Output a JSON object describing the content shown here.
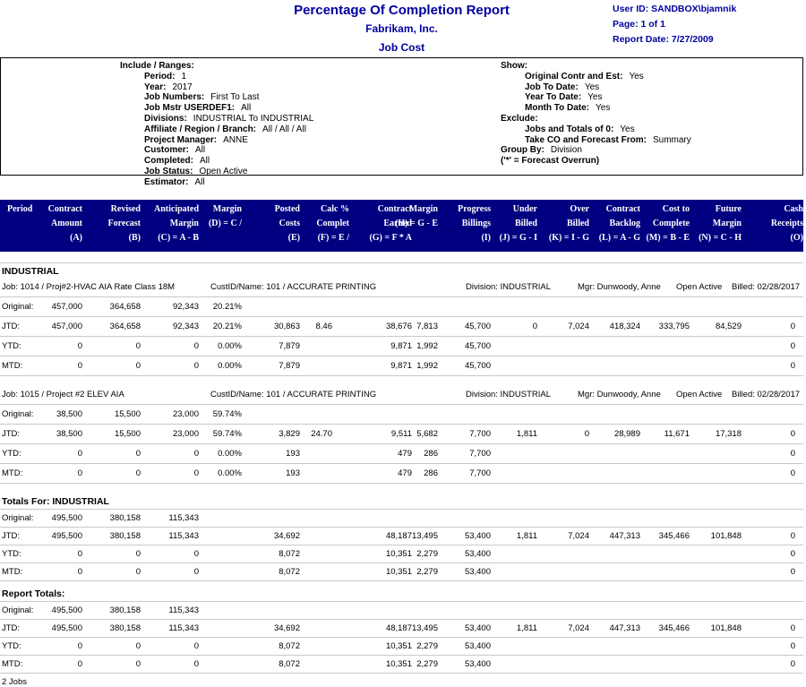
{
  "colors": {
    "header_band": "#000080",
    "header_band_text": "#FFFFFF",
    "title_text": "#0000A0",
    "grid_line": "#C9C9C9",
    "body_text": "#000000"
  },
  "page": {
    "title": "Percentage Of Completion Report",
    "company": "Fabrikam, Inc.",
    "module": "Job Cost",
    "user_id": "User ID: SANDBOX\\bjamnik",
    "page_info": "Page: 1 of 1",
    "report_date": "Report Date: 7/27/2009"
  },
  "options": {
    "include": {
      "items": [
        {
          "label": "Include / Ranges:",
          "indent": 0
        },
        {
          "label": "Period:",
          "value": "1",
          "indent": 1
        },
        {
          "label": "Year:",
          "value": "2017",
          "indent": 1
        },
        {
          "label": "Job Numbers:",
          "value": "First To Last",
          "indent": 1
        },
        {
          "label": "Job Mstr USERDEF1:",
          "value": "All",
          "indent": 1
        },
        {
          "label": "Divisions:",
          "value": "INDUSTRIAL To INDUSTRIAL",
          "indent": 1
        },
        {
          "label": "Affiliate / Region / Branch:",
          "value": "All / All / All",
          "indent": 1
        },
        {
          "label": "Project Manager:",
          "value": "ANNE",
          "indent": 1
        },
        {
          "label": "Customer:",
          "value": "All",
          "indent": 1
        },
        {
          "label": "Completed:",
          "value": "All",
          "indent": 1
        },
        {
          "label": "Job Status:",
          "value": "Open Active",
          "indent": 1
        },
        {
          "label": "Estimator:",
          "value": "All",
          "indent": 1
        }
      ]
    },
    "show": {
      "items": [
        {
          "label": "Show:",
          "indent": 0
        },
        {
          "label": "Original Contr and Est:",
          "value": "Yes",
          "indent": 1
        },
        {
          "label": "Job To Date:",
          "value": "Yes",
          "indent": 1
        },
        {
          "label": "Year To Date:",
          "value": "Yes",
          "indent": 1
        },
        {
          "label": "Month To Date:",
          "value": "Yes",
          "indent": 1
        },
        {
          "label": "Exclude:",
          "indent": 0
        },
        {
          "label": "Jobs and Totals of 0:",
          "value": "Yes",
          "indent": 1
        },
        {
          "label": "Take CO and Forecast From:",
          "value": "Summary",
          "indent": 1
        },
        {
          "label": "Group By:",
          "value": "Division",
          "indent": 0
        },
        {
          "label": "('*' = Forecast Overrun)",
          "indent": 0
        }
      ]
    }
  },
  "table": {
    "period_header": "Period",
    "columns": [
      {
        "lines": [
          "Contract",
          "Amount",
          "(A)"
        ]
      },
      {
        "lines": [
          "Revised",
          "Forecast",
          "(B)"
        ]
      },
      {
        "lines": [
          "Anticipated",
          "Margin",
          "(C) = A - B"
        ]
      },
      {
        "lines": [
          "Margin",
          "(D) = C /",
          ""
        ]
      },
      {
        "lines": [
          "Posted",
          "Costs",
          "(E)"
        ]
      },
      {
        "lines": [
          "Calc %",
          "Complet",
          "(F) = E /"
        ]
      },
      {
        "lines": [
          "Contract",
          "Earned",
          "(G) = F * A"
        ]
      },
      {
        "lines": [
          "Margin",
          "(H) = G - E",
          ""
        ]
      },
      {
        "lines": [
          "Progress",
          "Billings",
          "(I)"
        ]
      },
      {
        "lines": [
          "Under",
          "Billed",
          "(J) = G - I"
        ]
      },
      {
        "lines": [
          "Over",
          "Billed",
          "(K) = I - G"
        ]
      },
      {
        "lines": [
          "Contract",
          "Backlog",
          "(L) = A - G"
        ]
      },
      {
        "lines": [
          "Cost to",
          "Complete",
          "(M) = B - E"
        ]
      },
      {
        "lines": [
          "Future",
          "Margin",
          "(N) = C - H"
        ]
      },
      {
        "lines": [
          "Cash",
          "Receipts",
          "(O)"
        ]
      }
    ]
  },
  "report": {
    "sections": [
      {
        "type": "division",
        "text": "INDUSTRIAL"
      },
      {
        "type": "job",
        "info": [
          "Job: 1014 / Proj#2-HVAC AIA Rate Class 18M",
          "CustID/Name: 101 / ACCURATE PRINTING",
          "Division: INDUSTRIAL",
          "Mgr: Dunwoody, Anne",
          "Open Active",
          "Billed: 02/28/2017"
        ],
        "rows": [
          {
            "label": "Original:",
            "cells": [
              "457,000",
              "364,658",
              "92,343",
              "20.21%",
              "",
              "",
              "",
              "",
              "",
              "",
              "",
              "",
              "",
              "",
              ""
            ]
          },
          {
            "label": "JTD:",
            "cells": [
              "457,000",
              "364,658",
              "92,343",
              "20.21%",
              "30,863",
              "8.46",
              "38,676",
              "7,813",
              "45,700",
              "0",
              "7,024",
              "418,324",
              "333,795",
              "84,529",
              "0"
            ]
          },
          {
            "label": "YTD:",
            "cells": [
              "0",
              "0",
              "0",
              "0.00%",
              "7,879",
              "",
              "9,871",
              "1,992",
              "45,700",
              "",
              "",
              "",
              "",
              "",
              "0"
            ]
          },
          {
            "label": "MTD:",
            "cells": [
              "0",
              "0",
              "0",
              "0.00%",
              "7,879",
              "",
              "9,871",
              "1,992",
              "45,700",
              "",
              "",
              "",
              "",
              "",
              "0"
            ]
          }
        ]
      },
      {
        "type": "job",
        "info": [
          "Job: 1015 / Project #2 ELEV AIA",
          "CustID/Name: 101 / ACCURATE PRINTING",
          "Division: INDUSTRIAL",
          "Mgr: Dunwoody, Anne",
          "Open Active",
          "Billed: 02/28/2017"
        ],
        "rows": [
          {
            "label": "Original:",
            "cells": [
              "38,500",
              "15,500",
              "23,000",
              "59.74%",
              "",
              "",
              "",
              "",
              "",
              "",
              "",
              "",
              "",
              "",
              ""
            ]
          },
          {
            "label": "JTD:",
            "cells": [
              "38,500",
              "15,500",
              "23,000",
              "59.74%",
              "3,829",
              "24.70",
              "9,511",
              "5,682",
              "7,700",
              "1,811",
              "0",
              "28,989",
              "11,671",
              "17,318",
              "0"
            ]
          },
          {
            "label": "YTD:",
            "cells": [
              "0",
              "0",
              "0",
              "0.00%",
              "193",
              "",
              "479",
              "286",
              "7,700",
              "",
              "",
              "",
              "",
              "",
              "0"
            ]
          },
          {
            "label": "MTD:",
            "cells": [
              "0",
              "0",
              "0",
              "0.00%",
              "193",
              "",
              "479",
              "286",
              "7,700",
              "",
              "",
              "",
              "",
              "",
              "0"
            ]
          }
        ]
      },
      {
        "type": "totals",
        "heading": "Totals For: INDUSTRIAL",
        "rows": [
          {
            "label": "Original:",
            "cells": [
              "495,500",
              "380,158",
              "115,343",
              "",
              "",
              "",
              "",
              "",
              "",
              "",
              "",
              "",
              "",
              "",
              ""
            ]
          },
          {
            "label": "JTD:",
            "cells": [
              "495,500",
              "380,158",
              "115,343",
              "",
              "34,692",
              "",
              "48,187",
              "13,495",
              "53,400",
              "1,811",
              "7,024",
              "447,313",
              "345,466",
              "101,848",
              "0"
            ]
          },
          {
            "label": "YTD:",
            "cells": [
              "0",
              "0",
              "0",
              "",
              "8,072",
              "",
              "10,351",
              "2,279",
              "53,400",
              "",
              "",
              "",
              "",
              "",
              "0"
            ]
          },
          {
            "label": "MTD:",
            "cells": [
              "0",
              "0",
              "0",
              "",
              "8,072",
              "",
              "10,351",
              "2,279",
              "53,400",
              "",
              "",
              "",
              "",
              "",
              "0"
            ]
          }
        ]
      },
      {
        "type": "totals",
        "heading": "Report Totals:",
        "rows": [
          {
            "label": "Original:",
            "cells": [
              "495,500",
              "380,158",
              "115,343",
              "",
              "",
              "",
              "",
              "",
              "",
              "",
              "",
              "",
              "",
              "",
              ""
            ]
          },
          {
            "label": "JTD:",
            "cells": [
              "495,500",
              "380,158",
              "115,343",
              "",
              "34,692",
              "",
              "48,187",
              "13,495",
              "53,400",
              "1,811",
              "7,024",
              "447,313",
              "345,466",
              "101,848",
              "0"
            ]
          },
          {
            "label": "YTD:",
            "cells": [
              "0",
              "0",
              "0",
              "",
              "8,072",
              "",
              "10,351",
              "2,279",
              "53,400",
              "",
              "",
              "",
              "",
              "",
              "0"
            ]
          },
          {
            "label": "MTD:",
            "cells": [
              "0",
              "0",
              "0",
              "",
              "8,072",
              "",
              "10,351",
              "2,279",
              "53,400",
              "",
              "",
              "",
              "",
              "",
              "0"
            ]
          }
        ]
      },
      {
        "type": "footer",
        "text": "2 Jobs"
      }
    ]
  }
}
